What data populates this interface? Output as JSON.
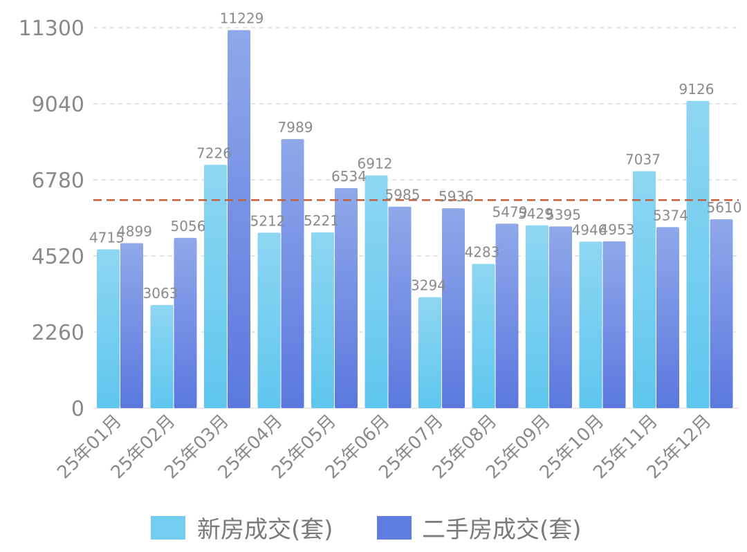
{
  "chart_data": {
    "type": "bar",
    "categories": [
      "25年01月",
      "25年02月",
      "25年03月",
      "25年04月",
      "25年05月",
      "25年06月",
      "25年07月",
      "25年08月",
      "25年09月",
      "25年10月",
      "25年11月",
      "25年12月"
    ],
    "series": [
      {
        "name": "新房成交(套)",
        "color_top": "#8ed6f2",
        "color_bottom": "#5fc6ee",
        "values": [
          4715,
          3063,
          7226,
          5212,
          5221,
          6912,
          3294,
          4283,
          5429,
          4946,
          7037,
          9126
        ]
      },
      {
        "name": "二手房成交(套)",
        "color_top": "#8fa8ea",
        "color_bottom": "#5b78de",
        "values": [
          4899,
          5056,
          11229,
          7989,
          6534,
          5985,
          5936,
          5479,
          5395,
          4953,
          5374,
          5610
        ]
      }
    ],
    "y_ticks": [
      "0",
      "2260",
      "4520",
      "6780",
      "9040",
      "11300"
    ],
    "ylim": [
      0,
      11300
    ],
    "reference_line": {
      "value": 6180,
      "color": "#c0603c",
      "style": "dashed"
    },
    "grid": "horizontal dashed",
    "legend_position": "bottom-center"
  }
}
